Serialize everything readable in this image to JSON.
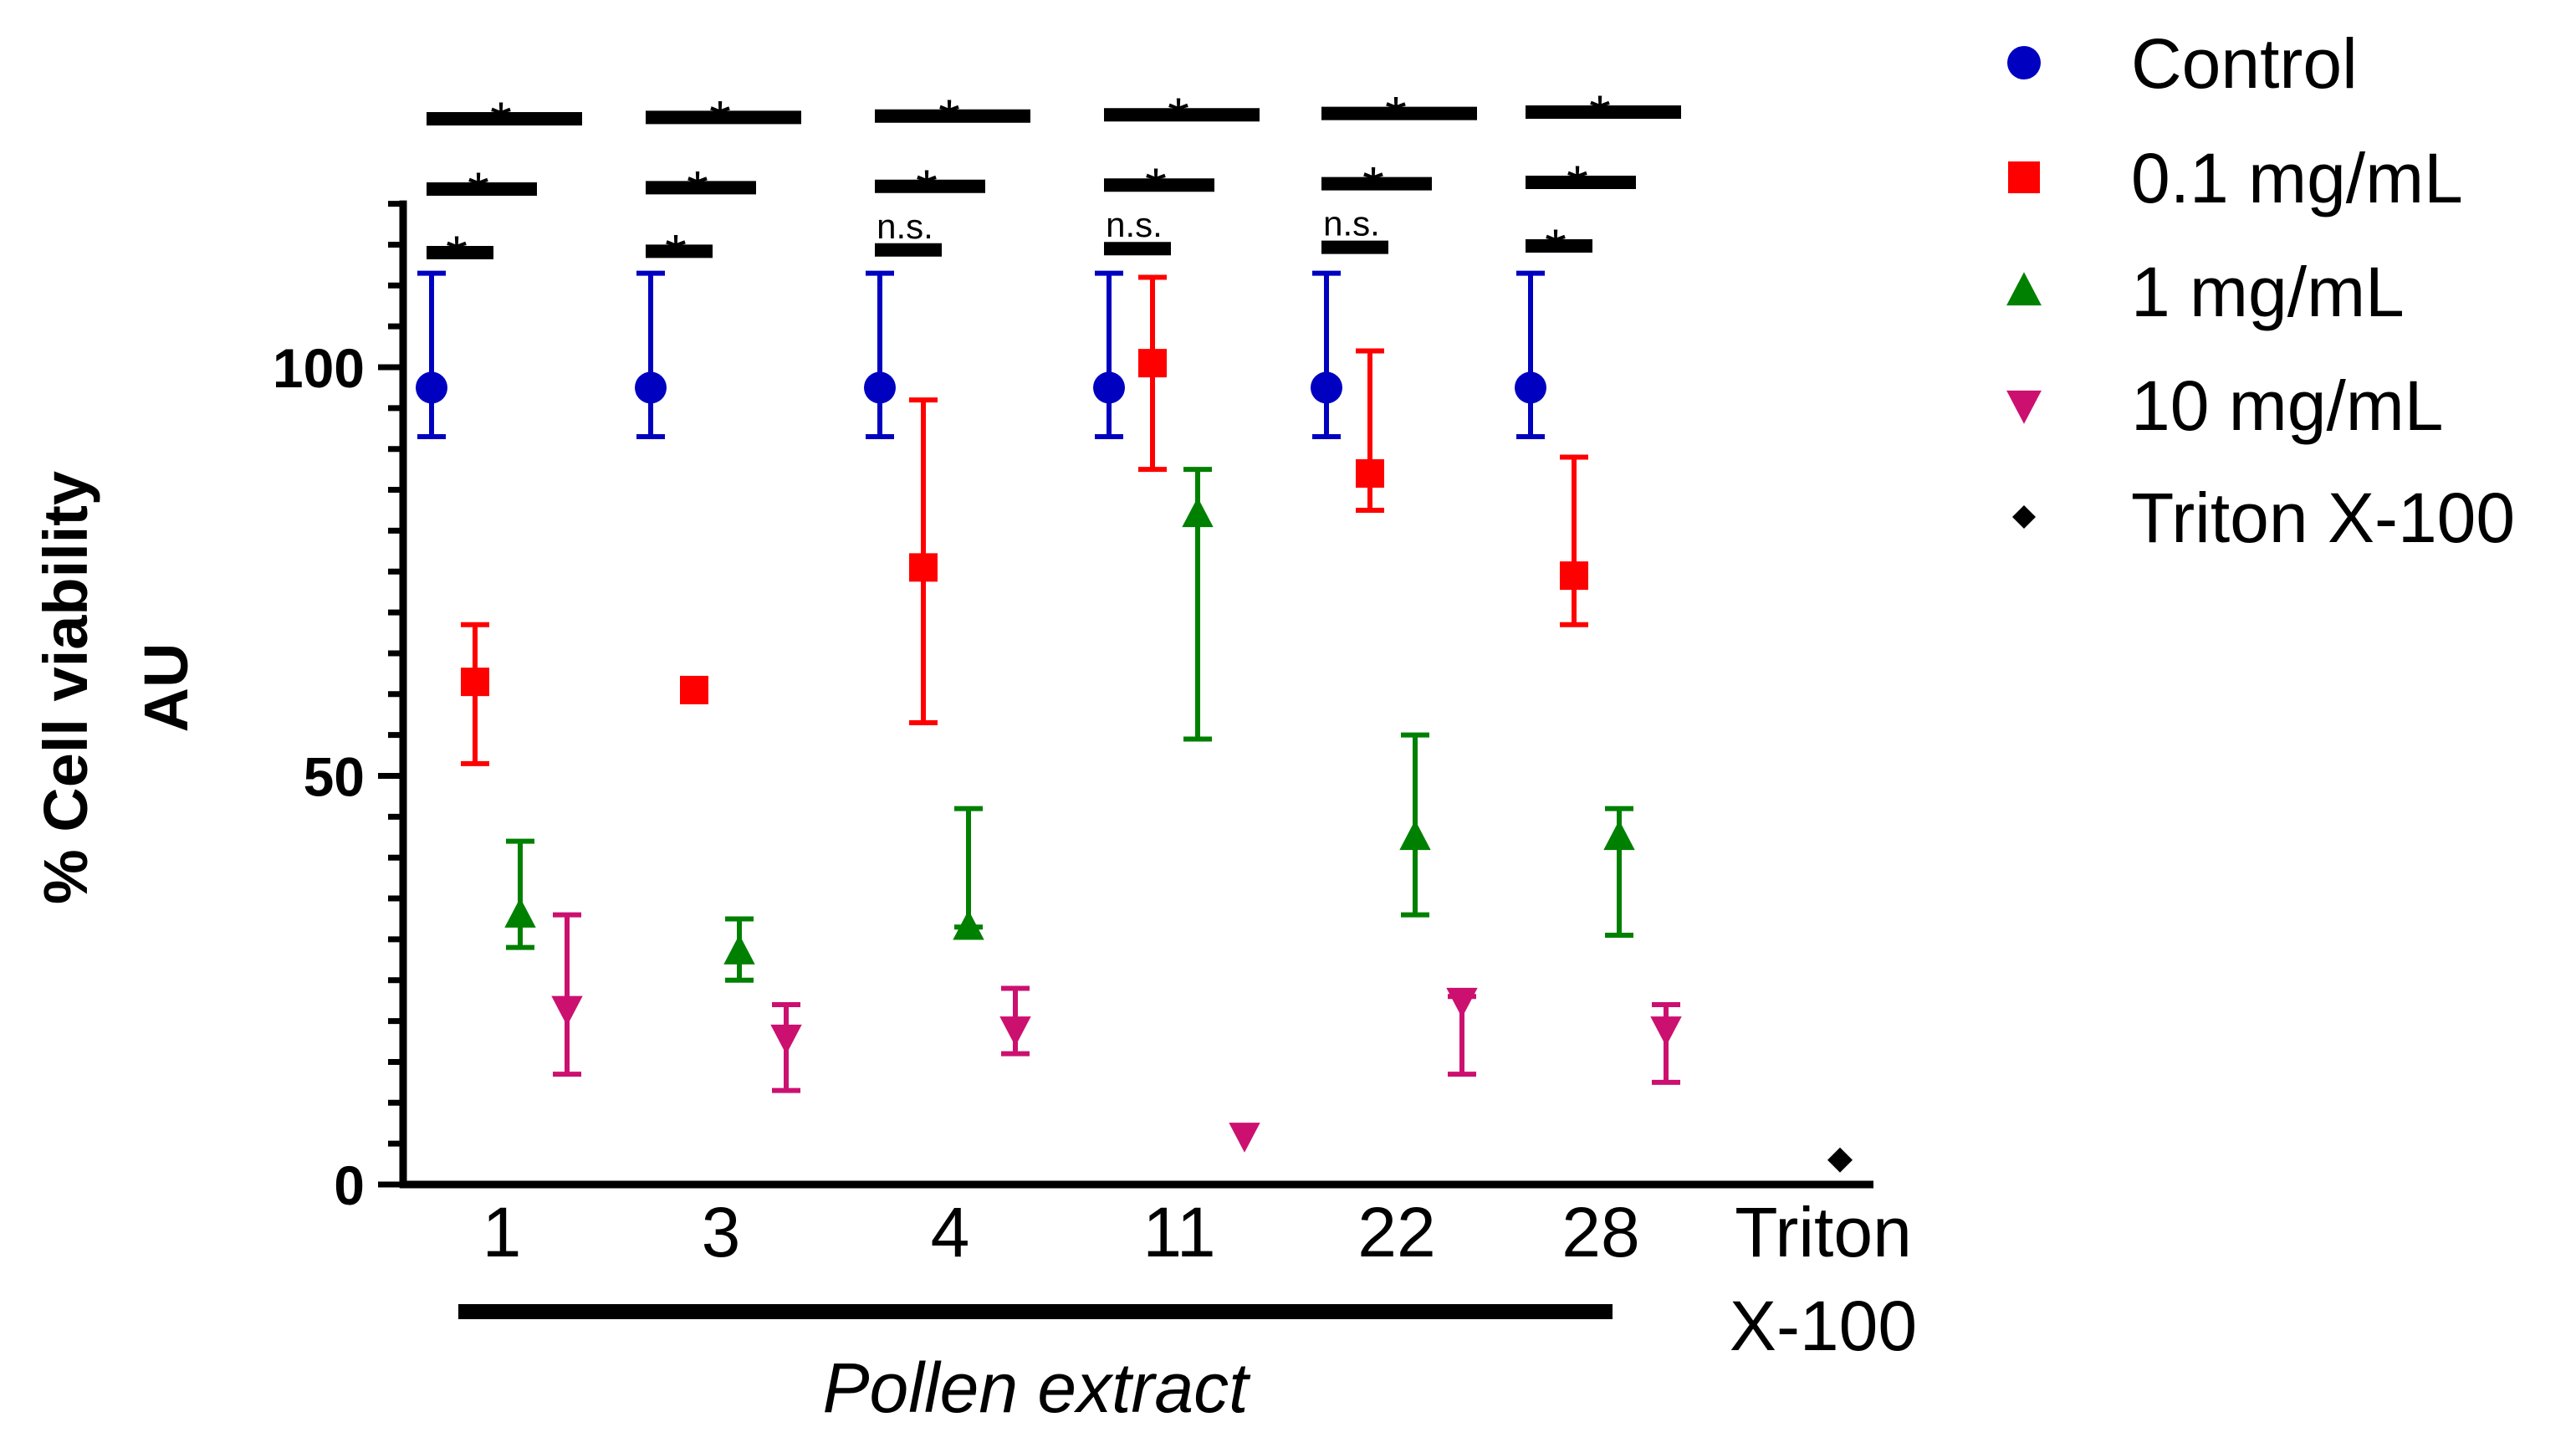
{
  "chart_data": {
    "type": "scatter",
    "ylabel_line1": "% Cell viability",
    "ylabel_line2": "AU",
    "xlabel": "Pollen extract",
    "ylim": [
      0,
      120
    ],
    "yticks": [
      0,
      50,
      100
    ],
    "grid": false,
    "legend_position": "top-right",
    "categories": [
      "1",
      "3",
      "4",
      "11",
      "22",
      "28"
    ],
    "triton_category": [
      "Triton",
      "X-100"
    ],
    "series": [
      {
        "name": "Control",
        "color": "#0000c0",
        "marker": "circle",
        "values": [
          97.5,
          97.5,
          97.5,
          97.5,
          97.5,
          97.5
        ],
        "err_low": [
          91.5,
          91.5,
          91.5,
          91.5,
          91.5,
          91.5
        ],
        "err_high": [
          111.5,
          111.5,
          111.5,
          111.5,
          111.5,
          111.5
        ]
      },
      {
        "name": "0.1 mg/mL",
        "color": "#ff0000",
        "marker": "square",
        "values": [
          61.5,
          60.5,
          75.5,
          100.5,
          87,
          74.5
        ],
        "err_low": [
          51.5,
          60.5,
          56.5,
          87.5,
          82.5,
          68.5
        ],
        "err_high": [
          68.5,
          60.5,
          96,
          111,
          102,
          89
        ]
      },
      {
        "name": "1 mg/mL",
        "color": "#008000",
        "marker": "triangle-up",
        "values": [
          33,
          28.5,
          31.5,
          82,
          42.5,
          42.5
        ],
        "err_low": [
          29,
          25,
          31.5,
          54.5,
          33,
          30.5
        ],
        "err_high": [
          42,
          32.5,
          46,
          87.5,
          55,
          46
        ]
      },
      {
        "name": "10 mg/mL",
        "color": "#cc1070",
        "marker": "triangle-down",
        "values": [
          21.5,
          18,
          19,
          6,
          22.5,
          19
        ],
        "err_low": [
          13.5,
          11.5,
          16,
          6,
          13.5,
          12.5
        ],
        "err_high": [
          33,
          22,
          24,
          6,
          23,
          22
        ]
      },
      {
        "name": "Triton X-100",
        "color": "#000000",
        "marker": "diamond",
        "values": [
          3
        ]
      }
    ],
    "significance": [
      {
        "category": "1",
        "labels": [
          "*",
          "*",
          "*"
        ]
      },
      {
        "category": "3",
        "labels": [
          "*",
          "*",
          "*"
        ]
      },
      {
        "category": "4",
        "labels": [
          "n.s.",
          "*",
          "*"
        ]
      },
      {
        "category": "11",
        "labels": [
          "n.s.",
          "*",
          "*"
        ]
      },
      {
        "category": "22",
        "labels": [
          "n.s.",
          "*",
          "*"
        ]
      },
      {
        "category": "28",
        "labels": [
          "*",
          "*",
          "*"
        ]
      }
    ]
  }
}
